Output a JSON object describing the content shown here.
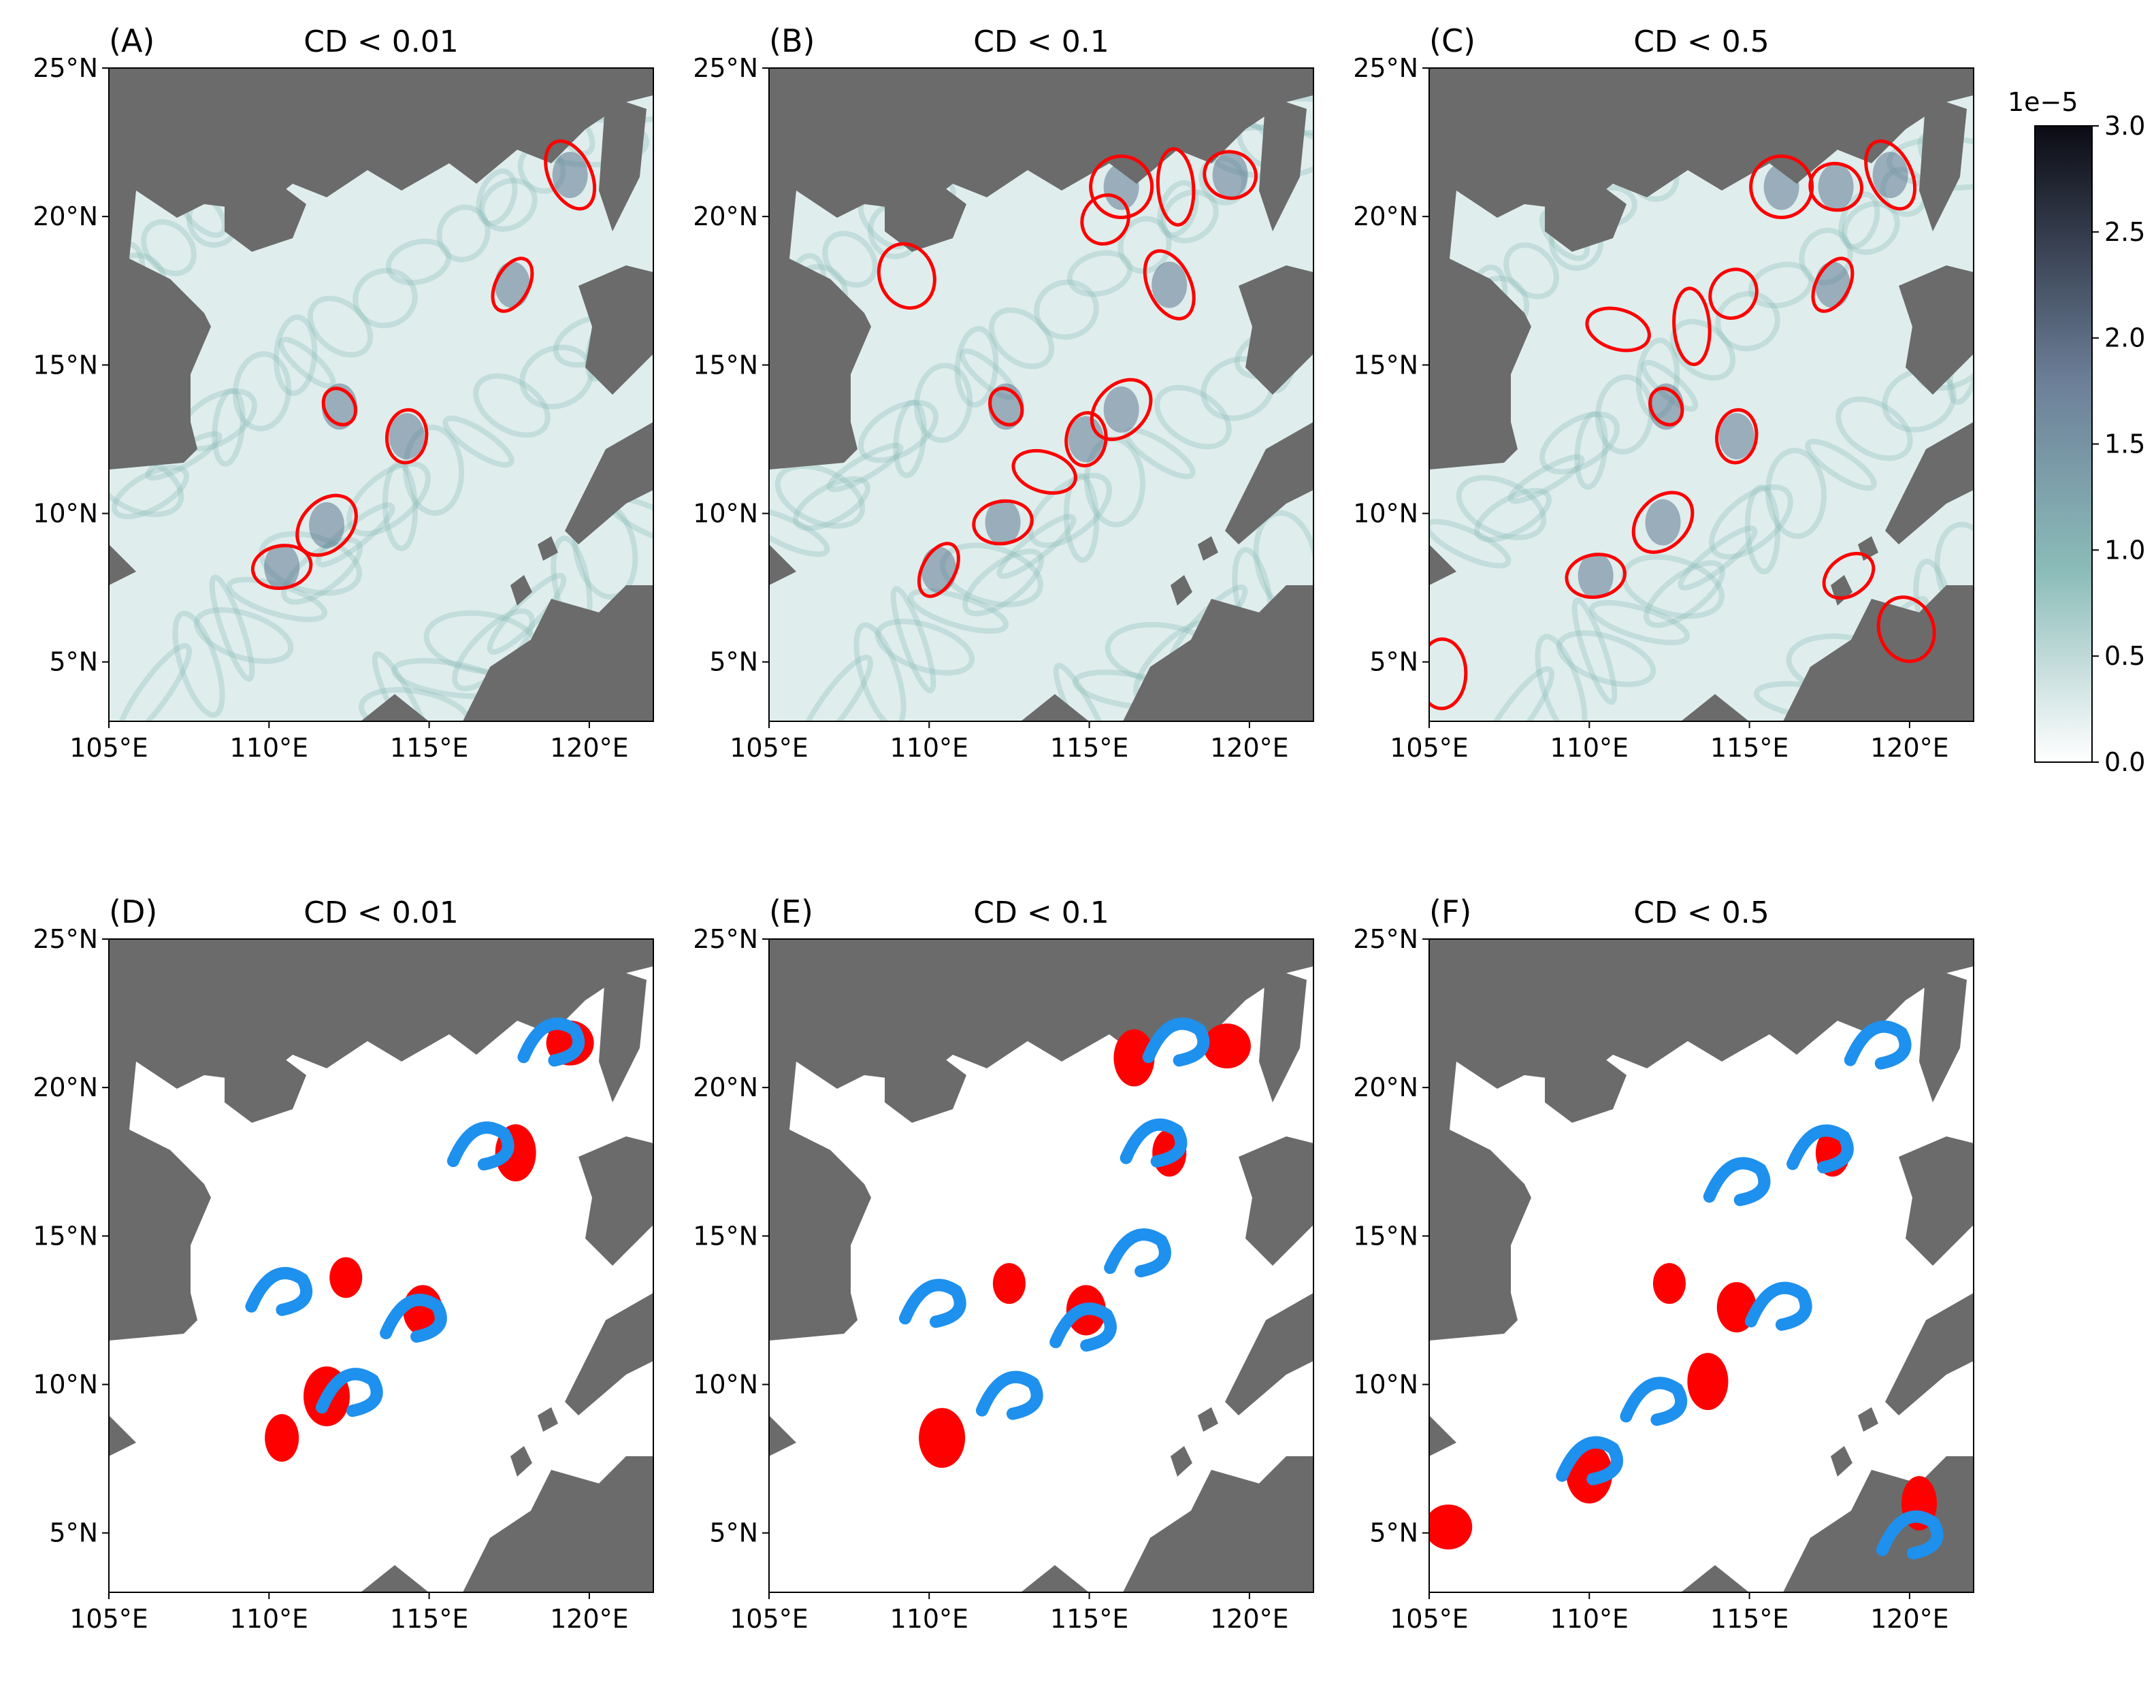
{
  "figure": {
    "panels": [
      {
        "id": "A",
        "letter": "(A)",
        "title": "CD < 0.01",
        "kind": "field"
      },
      {
        "id": "B",
        "letter": "(B)",
        "title": "CD < 0.1",
        "kind": "field"
      },
      {
        "id": "C",
        "letter": "(C)",
        "title": "CD < 0.5",
        "kind": "field"
      },
      {
        "id": "D",
        "letter": "(D)",
        "title": "CD < 0.01",
        "kind": "particles"
      },
      {
        "id": "E",
        "letter": "(E)",
        "title": "CD < 0.1",
        "kind": "particles"
      },
      {
        "id": "F",
        "letter": "(F)",
        "title": "CD < 0.5",
        "kind": "particles"
      }
    ],
    "lat_ticks": [
      "25°N",
      "20°N",
      "15°N",
      "10°N",
      "5°N"
    ],
    "lon_ticks": [
      "105°E",
      "110°E",
      "115°E",
      "120°E"
    ],
    "colorbar": {
      "exponent": "1e−5",
      "ticks": [
        "3.0",
        "2.5",
        "2.0",
        "1.5",
        "1.0",
        "0.5",
        "0.0"
      ]
    },
    "colors": {
      "land": "#6b6b6b",
      "sea_low": "#ffffff",
      "sea_mid": "#8bbcb9",
      "sea_high": "#0b0b14",
      "contour": "#ff0000",
      "particles_initial": "#ff0000",
      "particles_final": "#1e90ee"
    }
  },
  "chart_data": {
    "type": "map",
    "lon_range": [
      105,
      122
    ],
    "lat_range": [
      3,
      25
    ],
    "colorbar_range": [
      0.0,
      3.0
    ],
    "eddies": {
      "A": [
        [
          112.2,
          13.6
        ],
        [
          114.3,
          12.6
        ],
        [
          111.8,
          9.6
        ],
        [
          110.4,
          8.2
        ],
        [
          117.6,
          17.7
        ],
        [
          119.4,
          21.4
        ]
      ],
      "B": [
        [
          112.4,
          13.6
        ],
        [
          114.9,
          12.5
        ],
        [
          116.0,
          13.5
        ],
        [
          112.3,
          9.7
        ],
        [
          110.3,
          8.1
        ],
        [
          117.5,
          17.7
        ],
        [
          119.4,
          21.4
        ],
        [
          116.0,
          21.0
        ],
        [
          117.7,
          21.0
        ],
        [
          115.5,
          19.9
        ],
        [
          109.3,
          18.0
        ],
        [
          113.6,
          11.4
        ]
      ],
      "C": [
        [
          112.4,
          13.6
        ],
        [
          114.6,
          12.6
        ],
        [
          112.3,
          9.7
        ],
        [
          110.2,
          7.9
        ],
        [
          117.6,
          17.7
        ],
        [
          119.4,
          21.4
        ],
        [
          117.7,
          21.0
        ],
        [
          116.0,
          21.0
        ],
        [
          113.2,
          16.3
        ],
        [
          114.5,
          17.4
        ],
        [
          119.9,
          6.1
        ],
        [
          110.9,
          16.2
        ],
        [
          118.1,
          7.9
        ],
        [
          105.4,
          4.6
        ]
      ]
    },
    "particles": {
      "D": {
        "red": [
          [
            112.4,
            13.6
          ],
          [
            114.8,
            12.5
          ],
          [
            111.8,
            9.6
          ],
          [
            110.4,
            8.2
          ],
          [
            117.7,
            17.8
          ],
          [
            119.4,
            21.5
          ]
        ],
        "blue": [
          [
            110.3,
            13.2
          ],
          [
            114.5,
            12.3
          ],
          [
            112.5,
            9.8
          ],
          [
            116.6,
            18.1
          ],
          [
            118.8,
            21.6
          ]
        ]
      },
      "E": {
        "red": [
          [
            112.5,
            13.4
          ],
          [
            114.9,
            12.5
          ],
          [
            110.4,
            8.2
          ],
          [
            117.5,
            17.8
          ],
          [
            116.4,
            21.0
          ],
          [
            119.3,
            21.4
          ]
        ],
        "blue": [
          [
            110.1,
            12.8
          ],
          [
            112.5,
            9.7
          ],
          [
            114.8,
            12.0
          ],
          [
            116.5,
            14.5
          ],
          [
            117.0,
            18.2
          ],
          [
            117.7,
            21.6
          ]
        ]
      },
      "F": {
        "red": [
          [
            112.5,
            13.4
          ],
          [
            114.6,
            12.6
          ],
          [
            110.0,
            7.0
          ],
          [
            117.6,
            17.8
          ],
          [
            113.7,
            10.1
          ],
          [
            105.6,
            5.2
          ],
          [
            120.3,
            6.0
          ]
        ],
        "blue": [
          [
            112.0,
            9.5
          ],
          [
            110.0,
            7.5
          ],
          [
            114.6,
            16.9
          ],
          [
            117.2,
            18.0
          ],
          [
            115.9,
            12.7
          ],
          [
            119.0,
            21.5
          ],
          [
            120.0,
            5.0
          ]
        ]
      }
    }
  }
}
